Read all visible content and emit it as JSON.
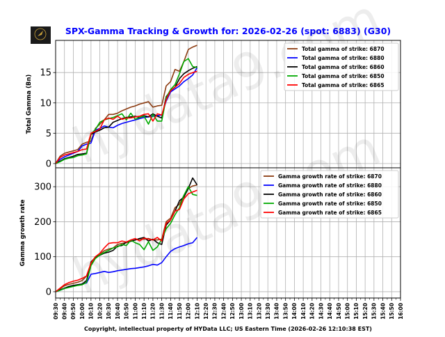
{
  "title": "SPX-Gamma Tracking & Growth for: 2026-02-26 (spot: 6883) (G30)",
  "logo_text": "HYDATA",
  "watermark": "hydata9.com",
  "footer": "Copyright, intellectual property of HYData LLC; US Eastern Time (2026-02-26 12:10:38 EST)",
  "colors": {
    "6870": "#8B3A0F",
    "6880": "#0000FF",
    "6860": "#000000",
    "6850": "#00AA00",
    "6865": "#FF0000",
    "title": "#0000FF"
  },
  "chart_data": [
    {
      "type": "line",
      "ylabel": "Total Gamma (Bn)",
      "ylim": [
        -0.7,
        20.3
      ],
      "yticks": [
        "0",
        "5",
        "10",
        "15"
      ],
      "grid": true,
      "legend_position": "top-right",
      "x": [
        "09:30",
        "09:35",
        "09:40",
        "09:45",
        "09:50",
        "09:55",
        "10:00",
        "10:05",
        "10:10",
        "10:15",
        "10:20",
        "10:25",
        "10:30",
        "10:35",
        "10:40",
        "10:45",
        "10:50",
        "10:55",
        "11:00",
        "11:05",
        "11:10",
        "11:15",
        "11:20",
        "11:25",
        "11:30",
        "11:35",
        "11:40",
        "11:45",
        "11:50",
        "11:55",
        "12:00",
        "12:05",
        "12:10"
      ],
      "series": [
        {
          "name": "Total gamma of strike: 6870",
          "color_key": "6870",
          "values": [
            0,
            1.2,
            1.7,
            1.9,
            2.1,
            2.3,
            3.2,
            3.5,
            3.7,
            5.8,
            6.5,
            7.2,
            8.1,
            8.1,
            8.3,
            8.7,
            9.0,
            9.3,
            9.5,
            9.8,
            10.0,
            10.2,
            9.3,
            9.5,
            9.6,
            12.8,
            13.5,
            15.5,
            15.2,
            16.8,
            18.8,
            19.2,
            19.5
          ]
        },
        {
          "name": "Total gamma of strike: 6880",
          "color_key": "6880",
          "values": [
            0,
            0.7,
            1.1,
            1.4,
            1.7,
            2.0,
            2.9,
            3.2,
            3.4,
            5.5,
            5.8,
            6.2,
            6.0,
            5.9,
            6.3,
            6.6,
            6.8,
            7.0,
            7.2,
            7.4,
            7.6,
            7.7,
            7.8,
            7.9,
            8.0,
            10.3,
            11.8,
            12.3,
            12.8,
            13.5,
            14.0,
            14.6,
            15.8
          ]
        },
        {
          "name": "Total gamma of strike: 6860",
          "color_key": "6860",
          "values": [
            0,
            0.4,
            0.8,
            1.0,
            1.2,
            1.5,
            1.6,
            1.7,
            4.8,
            5.2,
            5.5,
            5.9,
            6.0,
            6.8,
            7.1,
            7.4,
            7.6,
            7.7,
            7.8,
            7.6,
            7.9,
            7.7,
            8.2,
            7.8,
            7.5,
            11.0,
            12.0,
            12.6,
            14.0,
            14.8,
            15.3,
            15.7,
            16.0
          ]
        },
        {
          "name": "Total gamma of strike: 6850",
          "color_key": "6850",
          "values": [
            0,
            0.3,
            0.7,
            0.9,
            1.0,
            1.3,
            1.4,
            1.6,
            4.9,
            5.6,
            6.8,
            7.2,
            7.4,
            7.6,
            7.9,
            8.2,
            7.2,
            8.3,
            7.3,
            7.6,
            7.8,
            6.5,
            8.1,
            7.0,
            7.0,
            10.8,
            12.2,
            13.0,
            14.8,
            16.8,
            17.3,
            16.0,
            15.8
          ]
        },
        {
          "name": "Total gamma of strike: 6865",
          "color_key": "6865",
          "values": [
            0,
            1.0,
            1.4,
            1.6,
            1.8,
            2.0,
            2.3,
            2.4,
            5.0,
            5.3,
            5.7,
            7.2,
            7.5,
            7.3,
            7.8,
            7.3,
            7.5,
            7.5,
            7.7,
            7.8,
            8.1,
            8.2,
            7.0,
            8.2,
            8.0,
            10.5,
            12.0,
            12.6,
            13.2,
            14.2,
            14.7,
            15.0,
            15.2
          ]
        }
      ]
    },
    {
      "type": "line",
      "ylabel": "Gamma growth rate",
      "ylim": [
        -18,
        354
      ],
      "yticks": [
        "0",
        "100",
        "200",
        "300"
      ],
      "grid": true,
      "legend_position": "top-right",
      "xlim": [
        "09:30",
        "16:00"
      ],
      "xticks": [
        "09:30",
        "09:40",
        "09:50",
        "10:00",
        "10:10",
        "10:20",
        "10:30",
        "10:40",
        "10:50",
        "11:00",
        "11:10",
        "11:20",
        "11:30",
        "11:40",
        "11:50",
        "12:00",
        "12:10",
        "12:20",
        "12:30",
        "12:40",
        "12:50",
        "13:00",
        "13:10",
        "13:20",
        "13:30",
        "13:40",
        "13:50",
        "14:00",
        "14:10",
        "14:20",
        "14:30",
        "14:40",
        "14:50",
        "15:00",
        "15:10",
        "15:20",
        "15:30",
        "15:40",
        "15:50",
        "16:00"
      ],
      "x": [
        "09:30",
        "09:35",
        "09:40",
        "09:45",
        "09:50",
        "09:55",
        "10:00",
        "10:05",
        "10:10",
        "10:15",
        "10:20",
        "10:25",
        "10:30",
        "10:35",
        "10:40",
        "10:45",
        "10:50",
        "10:55",
        "11:00",
        "11:05",
        "11:10",
        "11:15",
        "11:20",
        "11:25",
        "11:30",
        "11:35",
        "11:40",
        "11:45",
        "11:50",
        "11:55",
        "12:00",
        "12:05",
        "12:10"
      ],
      "series": [
        {
          "name": "Gamma growth rate of strike: 6870",
          "color_key": "6870",
          "values": [
            0,
            8,
            17,
            21,
            24,
            27,
            32,
            45,
            80,
            100,
            107,
            117,
            122,
            125,
            135,
            138,
            140,
            145,
            148,
            150,
            150,
            152,
            148,
            148,
            150,
            200,
            210,
            240,
            250,
            275,
            295,
            302,
            305
          ]
        },
        {
          "name": "Gamma growth rate of strike: 6880",
          "color_key": "6880",
          "values": [
            0,
            4,
            9,
            13,
            17,
            20,
            22,
            25,
            50,
            52,
            55,
            58,
            55,
            57,
            60,
            62,
            64,
            66,
            67,
            69,
            71,
            74,
            78,
            76,
            83,
            100,
            115,
            123,
            128,
            132,
            137,
            140,
            155
          ]
        },
        {
          "name": "Gamma growth rate of strike: 6860",
          "color_key": "6860",
          "values": [
            0,
            5,
            10,
            15,
            18,
            20,
            22,
            32,
            85,
            98,
            104,
            110,
            113,
            118,
            130,
            132,
            142,
            144,
            148,
            152,
            155,
            145,
            150,
            140,
            135,
            190,
            205,
            230,
            260,
            270,
            295,
            325,
            305
          ]
        },
        {
          "name": "Gamma growth rate of strike: 6850",
          "color_key": "6850",
          "values": [
            0,
            4,
            9,
            12,
            15,
            18,
            20,
            27,
            75,
            95,
            105,
            112,
            118,
            125,
            128,
            135,
            132,
            147,
            140,
            135,
            120,
            143,
            118,
            128,
            150,
            180,
            195,
            220,
            240,
            275,
            300,
            278,
            275
          ]
        },
        {
          "name": "Gamma growth rate of strike: 6865",
          "color_key": "6865",
          "values": [
            0,
            10,
            20,
            26,
            30,
            33,
            38,
            45,
            82,
            100,
            110,
            125,
            138,
            140,
            140,
            145,
            142,
            148,
            152,
            145,
            153,
            150,
            148,
            155,
            145,
            195,
            205,
            230,
            235,
            265,
            280,
            285,
            290
          ]
        }
      ]
    }
  ]
}
